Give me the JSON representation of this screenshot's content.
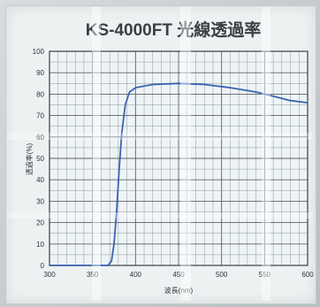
{
  "chart_data": {
    "type": "line",
    "title": "KS-4000FT 光線透過率",
    "xlabel": "波長(nm)",
    "ylabel": "透過率(%)",
    "xlim": [
      300,
      600
    ],
    "ylim": [
      0,
      100
    ],
    "x_ticks": [
      "300",
      "350",
      "400",
      "450",
      "500",
      "550",
      "600"
    ],
    "y_ticks": [
      "0",
      "10",
      "20",
      "30",
      "40",
      "50",
      "60",
      "70",
      "80",
      "90",
      "100"
    ],
    "grid": true,
    "series": [
      {
        "color": "#3b63b0",
        "points": [
          [
            300,
            0
          ],
          [
            345,
            0
          ],
          [
            368,
            0
          ],
          [
            372,
            2
          ],
          [
            375,
            10
          ],
          [
            378,
            25
          ],
          [
            381,
            45
          ],
          [
            384,
            62
          ],
          [
            388,
            75
          ],
          [
            393,
            81
          ],
          [
            400,
            83
          ],
          [
            420,
            84.5
          ],
          [
            450,
            85
          ],
          [
            480,
            84.5
          ],
          [
            510,
            83
          ],
          [
            540,
            81
          ],
          [
            560,
            79
          ],
          [
            580,
            77
          ],
          [
            600,
            76
          ]
        ]
      }
    ]
  }
}
